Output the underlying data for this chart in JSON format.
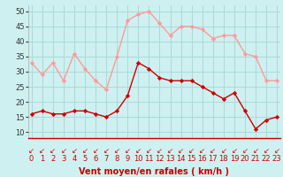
{
  "x": [
    0,
    1,
    2,
    3,
    4,
    5,
    6,
    7,
    8,
    9,
    10,
    11,
    12,
    13,
    14,
    15,
    16,
    17,
    18,
    19,
    20,
    21,
    22,
    23
  ],
  "vent_moyen": [
    16,
    17,
    16,
    16,
    17,
    17,
    16,
    15,
    17,
    22,
    33,
    31,
    28,
    27,
    27,
    27,
    25,
    23,
    21,
    23,
    17,
    11,
    14,
    15
  ],
  "rafales": [
    33,
    29,
    33,
    27,
    36,
    31,
    27,
    24,
    35,
    47,
    49,
    50,
    46,
    42,
    45,
    45,
    44,
    41,
    42,
    42,
    36,
    35,
    27,
    27
  ],
  "bg_color": "#cff0f0",
  "grid_color": "#a8dada",
  "line_moyen_color": "#cc0000",
  "line_rafales_color": "#ff9999",
  "xlabel": "Vent moyen/en rafales ( km/h )",
  "yticks": [
    10,
    15,
    20,
    25,
    30,
    35,
    40,
    45,
    50
  ],
  "ylim": [
    8,
    52
  ],
  "xlim": [
    -0.3,
    23.3
  ],
  "xlabel_fontsize": 7,
  "tick_fontsize": 6,
  "arrow_char": "↙"
}
